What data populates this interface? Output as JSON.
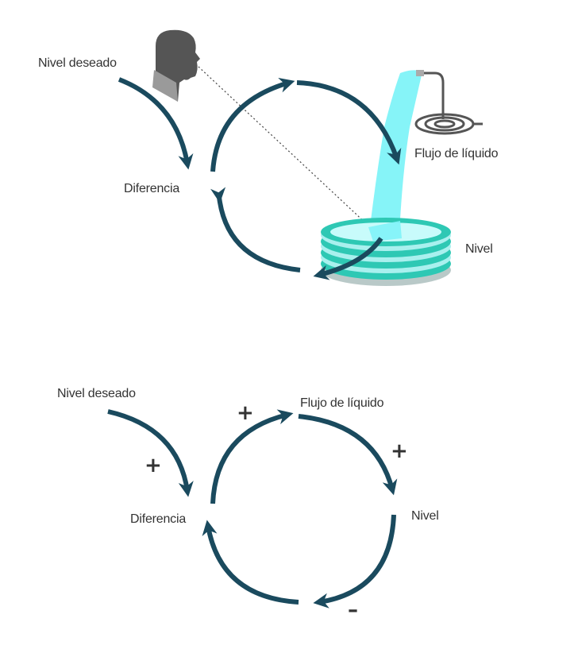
{
  "colors": {
    "arrow": "#1a4a5e",
    "text": "#333333",
    "water": "#7ff3f8",
    "tank": "#2ec8b4",
    "tank_light": "#a9f0ee",
    "person": "#555555",
    "pipe": "#555555"
  },
  "icons": [
    "person-silhouette-icon",
    "water-tank-icon",
    "faucet-coil-icon"
  ],
  "top_diagram": {
    "desired_level": "Nivel deseado",
    "difference": "Diferencia",
    "liquid_flow": "Flujo de líquido",
    "level": "Nivel"
  },
  "bottom_diagram": {
    "desired_level": "Nivel deseado",
    "difference": "Diferencia",
    "liquid_flow": "Flujo de líquido",
    "level": "Nivel",
    "signs": {
      "desired_to_difference": "+",
      "difference_to_flow": "+",
      "flow_to_level": "+",
      "level_to_difference": "–"
    }
  }
}
